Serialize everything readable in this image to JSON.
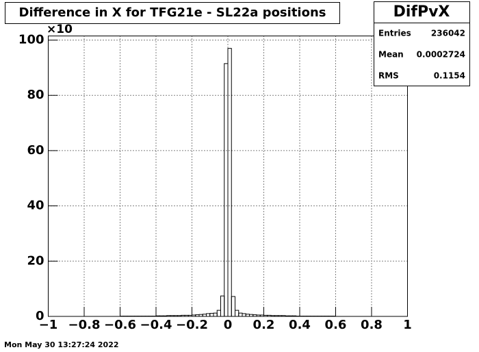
{
  "chart_data": {
    "type": "histogram",
    "title": "Difference in X for TFG21e - SL22a positions",
    "axis_multiplier": "×10",
    "bins": [
      -1,
      -0.98,
      -0.96,
      -0.94,
      -0.92,
      -0.9,
      -0.88,
      -0.86,
      -0.84,
      -0.82,
      -0.8,
      -0.78,
      -0.76,
      -0.74,
      -0.72,
      -0.7,
      -0.68,
      -0.66,
      -0.64,
      -0.62,
      -0.6,
      -0.58,
      -0.56,
      -0.54,
      -0.52,
      -0.5,
      -0.48,
      -0.46,
      -0.44,
      -0.42,
      -0.4,
      -0.38,
      -0.36,
      -0.34,
      -0.32,
      -0.3,
      -0.28,
      -0.26,
      -0.24,
      -0.22,
      -0.2,
      -0.18,
      -0.16,
      -0.14,
      -0.12,
      -0.1,
      -0.08,
      -0.06,
      -0.04,
      -0.02,
      0,
      0.02,
      0.04,
      0.06,
      0.08,
      0.1,
      0.12,
      0.14,
      0.16,
      0.18,
      0.2,
      0.22,
      0.24,
      0.26,
      0.28,
      0.3,
      0.32,
      0.34,
      0.36,
      0.38,
      0.4,
      0.42,
      0.44,
      0.46,
      0.48,
      0.5,
      0.52,
      0.54,
      0.56,
      0.58,
      0.6,
      0.62,
      0.64,
      0.66,
      0.68,
      0.7,
      0.72,
      0.74,
      0.76,
      0.78,
      0.8,
      0.82,
      0.84,
      0.86,
      0.88,
      0.9,
      0.92,
      0.94,
      0.96,
      0.98,
      1
    ],
    "values": [
      0,
      0,
      0,
      0,
      0,
      0,
      0,
      0,
      0,
      0,
      0,
      0,
      0,
      0,
      0,
      0,
      0,
      0,
      0,
      0,
      0.1,
      0.1,
      0.1,
      0.1,
      0.1,
      0.1,
      0.1,
      0.1,
      0.1,
      0.1,
      0.2,
      0.2,
      0.2,
      0.3,
      0.3,
      0.3,
      0.3,
      0.4,
      0.4,
      0.4,
      0.5,
      0.6,
      0.7,
      0.8,
      1.0,
      1.1,
      1.2,
      2.2,
      7.4,
      91.5,
      97,
      7.2,
      2.2,
      1.2,
      1.0,
      0.8,
      0.7,
      0.6,
      0.5,
      0.5,
      0.4,
      0.4,
      0.3,
      0.3,
      0.3,
      0.3,
      0.2,
      0.2,
      0.2,
      0.1,
      0.1,
      0.1,
      0.1,
      0.1,
      0.1,
      0.1,
      0.1,
      0.1,
      0.1,
      0.1,
      0,
      0,
      0,
      0,
      0,
      0,
      0,
      0,
      0,
      0,
      0,
      0,
      0,
      0,
      0,
      0,
      0,
      0,
      0,
      0
    ],
    "color": "#000000",
    "xlim": [
      -1,
      1
    ],
    "xticks": [
      {
        "value": -1,
        "label": "−1"
      },
      {
        "value": -0.8,
        "label": "−0.8"
      },
      {
        "value": -0.6,
        "label": "−0.6"
      },
      {
        "value": -0.4,
        "label": "−0.4"
      },
      {
        "value": -0.2,
        "label": "−0.2"
      },
      0,
      0.2,
      0.4,
      0.6,
      0.8,
      1
    ],
    "ylim": [
      0,
      101.5
    ],
    "yticks": [
      0,
      20,
      40,
      60,
      80,
      100
    ],
    "grid": true,
    "stats": {
      "title": "DifPvX",
      "rows": [
        {
          "label": "Entries",
          "value": 236042
        },
        {
          "label": "Mean",
          "value": 0.0002724
        },
        {
          "label": "RMS",
          "value": 0.1154
        }
      ]
    },
    "timestamp": "Mon May 30 13:27:24 2022"
  }
}
